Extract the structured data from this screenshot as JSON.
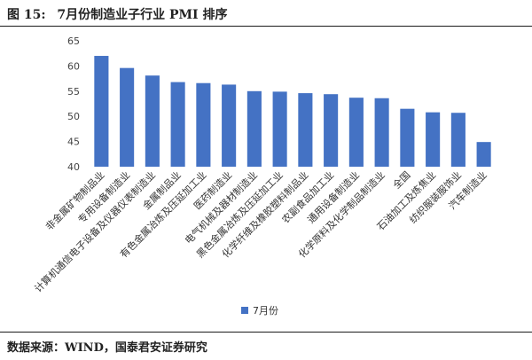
{
  "figure": {
    "label": "图 15:",
    "title": "7月份制造业子行业 PMI 排序",
    "source": "数据来源：WIND，国泰君安证券研究"
  },
  "chart_data": {
    "type": "bar",
    "title": "",
    "xlabel": "",
    "ylabel": "",
    "ylim": [
      40,
      65
    ],
    "yticks": [
      40,
      45,
      50,
      55,
      60,
      65
    ],
    "grid": false,
    "legend_position": "bottom-center",
    "bar_color": "#4472C4",
    "series": [
      {
        "name": "7月份",
        "values": [
          62.0,
          59.6,
          58.1,
          56.8,
          56.6,
          56.3,
          55.0,
          54.9,
          54.6,
          54.4,
          53.7,
          53.6,
          51.5,
          50.8,
          50.7,
          44.9
        ]
      }
    ],
    "categories": [
      "非金属矿物制品业",
      "专用设备制造业",
      "计算机通信电子设备及仪器仪表制造业",
      "金属制品业",
      "有色金属冶炼及压延加工业",
      "医药制造业",
      "电气机械及器材制造业",
      "黑色金属冶炼及压延加工业",
      "化学纤维及橡胶塑料制品业",
      "农副食品加工业",
      "通用设备制造业",
      "化学原料及化学制品制造业",
      "全国",
      "石油加工及炼焦业",
      "纺织服装服饰业",
      "汽车制造业"
    ]
  }
}
